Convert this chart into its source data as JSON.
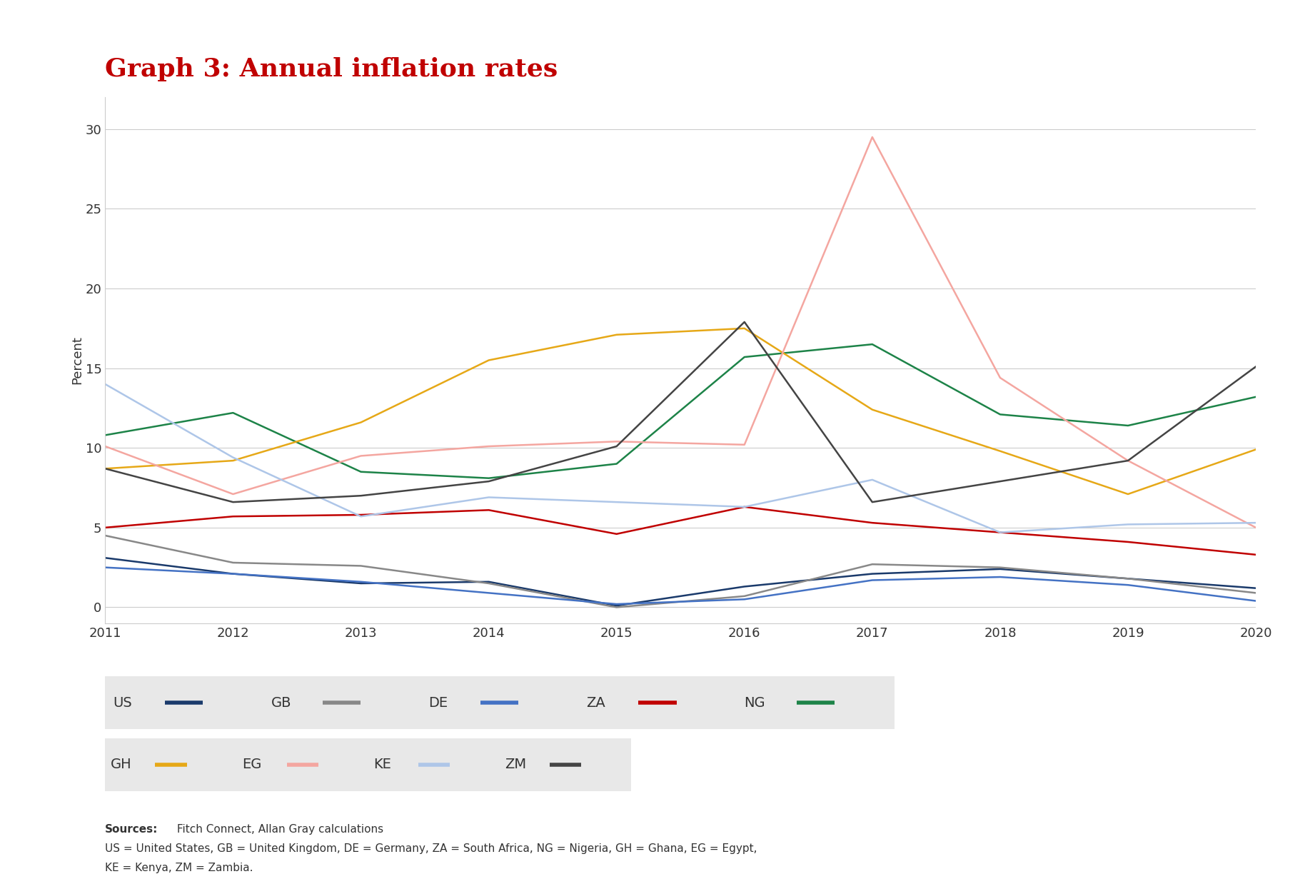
{
  "title": "Graph 3: Annual inflation rates",
  "title_color": "#c00000",
  "ylabel": "Percent",
  "years": [
    2011,
    2012,
    2013,
    2014,
    2015,
    2016,
    2017,
    2018,
    2019,
    2020
  ],
  "series": {
    "US": {
      "values": [
        3.1,
        2.1,
        1.5,
        1.6,
        0.1,
        1.3,
        2.1,
        2.4,
        1.8,
        1.2
      ],
      "color": "#1a3a6b",
      "lw": 1.8
    },
    "GB": {
      "values": [
        4.5,
        2.8,
        2.6,
        1.5,
        0.0,
        0.7,
        2.7,
        2.5,
        1.8,
        0.9
      ],
      "color": "#888888",
      "lw": 1.8
    },
    "DE": {
      "values": [
        2.5,
        2.1,
        1.6,
        0.9,
        0.2,
        0.5,
        1.7,
        1.9,
        1.4,
        0.4
      ],
      "color": "#4472c4",
      "lw": 1.8
    },
    "ZA": {
      "values": [
        5.0,
        5.7,
        5.8,
        6.1,
        4.6,
        6.3,
        5.3,
        4.7,
        4.1,
        3.3
      ],
      "color": "#c00000",
      "lw": 1.8
    },
    "NG": {
      "values": [
        10.8,
        12.2,
        8.5,
        8.1,
        9.0,
        15.7,
        16.5,
        12.1,
        11.4,
        13.2
      ],
      "color": "#1d8348",
      "lw": 1.8
    },
    "GH": {
      "values": [
        8.7,
        9.2,
        11.6,
        15.5,
        17.1,
        17.5,
        12.4,
        9.8,
        7.1,
        9.9
      ],
      "color": "#e6a817",
      "lw": 1.8
    },
    "EG": {
      "values": [
        10.1,
        7.1,
        9.5,
        10.1,
        10.4,
        10.2,
        29.5,
        14.4,
        9.2,
        5.0
      ],
      "color": "#f4a6a0",
      "lw": 1.8
    },
    "KE": {
      "values": [
        14.0,
        9.4,
        5.7,
        6.9,
        6.6,
        6.3,
        8.0,
        4.7,
        5.2,
        5.3
      ],
      "color": "#aec6e8",
      "lw": 1.8
    },
    "ZM": {
      "values": [
        8.7,
        6.6,
        7.0,
        7.9,
        10.1,
        17.9,
        6.6,
        7.9,
        9.2,
        15.1
      ],
      "color": "#444444",
      "lw": 1.8
    }
  },
  "ylim": [
    -1,
    32
  ],
  "yticks": [
    0,
    5,
    10,
    15,
    20,
    25,
    30
  ],
  "background_color": "#ffffff",
  "plot_bg": "#ffffff",
  "legend_bg": "#e8e8e8",
  "text_color": "#333333",
  "grid_color": "#cccccc",
  "legend_row1": [
    "US",
    "GB",
    "DE",
    "ZA",
    "NG"
  ],
  "legend_row2": [
    "GH",
    "EG",
    "KE",
    "ZM"
  ],
  "source_bold": "Sources:",
  "source_rest": " Fitch Connect, Allan Gray calculations",
  "source_line2": "US = United States, GB = United Kingdom, DE = Germany, ZA = South Africa, NG = Nigeria, GH = Ghana, EG = Egypt,",
  "source_line3": "KE = Kenya, ZM = Zambia."
}
